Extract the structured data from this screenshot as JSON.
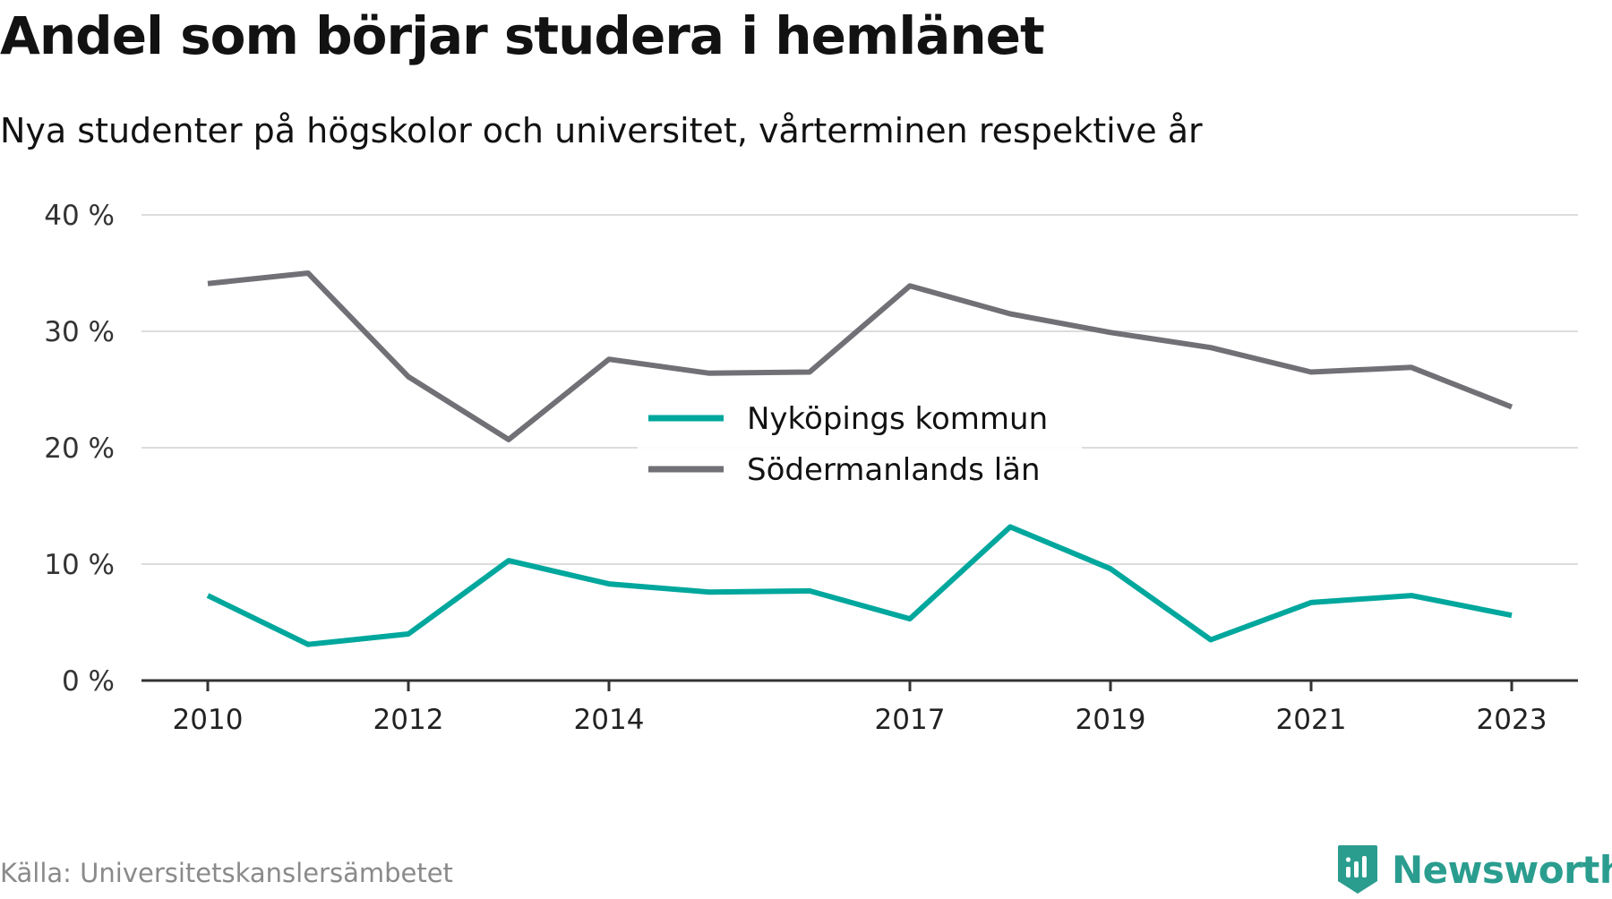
{
  "title": "Andel som börjar studera i hemlänet",
  "subtitle": "Nya studenter på högskolor och universitet, vårterminen respektive år",
  "source": "Källa: Universitetskanslersämbetet",
  "brand": {
    "name": "Newsworthy",
    "icon": "newsworthy-logo-icon",
    "color": "#2a9d8f"
  },
  "chart_data": {
    "type": "line",
    "x": [
      2010,
      2011,
      2012,
      2013,
      2014,
      2015,
      2016,
      2017,
      2018,
      2019,
      2020,
      2021,
      2022,
      2023
    ],
    "x_ticks": [
      2010,
      2012,
      2014,
      2017,
      2019,
      2021,
      2023
    ],
    "y_ticks": [
      0,
      10,
      20,
      30,
      40
    ],
    "y_tick_labels": [
      "0 %",
      "10 %",
      "20 %",
      "30 %",
      "40 %"
    ],
    "ylim": [
      0,
      40
    ],
    "grid": true,
    "legend_position": "center",
    "series": [
      {
        "name": "Nyköpings kommun",
        "color": "#00a79d",
        "values": [
          7.3,
          3.1,
          4.0,
          10.3,
          8.3,
          7.6,
          7.7,
          5.3,
          13.2,
          9.6,
          3.5,
          6.7,
          7.3,
          5.6
        ]
      },
      {
        "name": "Södermanlands län",
        "color": "#707076",
        "values": [
          34.1,
          35.0,
          26.1,
          20.7,
          27.6,
          26.4,
          26.5,
          33.9,
          31.5,
          29.9,
          28.6,
          26.5,
          26.9,
          23.5
        ]
      }
    ]
  }
}
